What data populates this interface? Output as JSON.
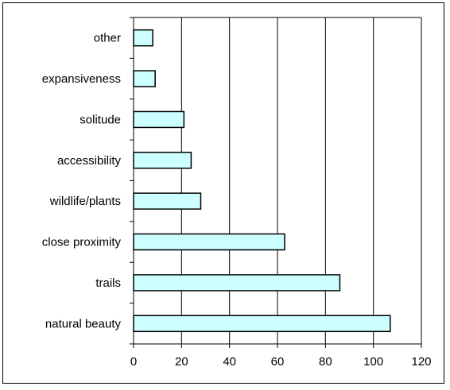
{
  "chart_data": {
    "type": "bar",
    "orientation": "horizontal",
    "categories": [
      "natural beauty",
      "trails",
      "close proximity",
      "wildlife/plants",
      "accessibility",
      "solitude",
      "expansiveness",
      "other"
    ],
    "values": [
      107,
      86,
      63,
      28,
      24,
      21,
      9,
      8
    ],
    "title": "",
    "xlabel": "",
    "ylabel": "",
    "xlim": [
      0,
      120
    ],
    "xticks": [
      0,
      20,
      40,
      60,
      80,
      100,
      120
    ],
    "grid": "vertical",
    "legend": "none",
    "colors": {
      "bar_fill": "#ccffff",
      "bar_stroke": "#000000",
      "grid": "#000000",
      "frame": "#000000"
    }
  }
}
